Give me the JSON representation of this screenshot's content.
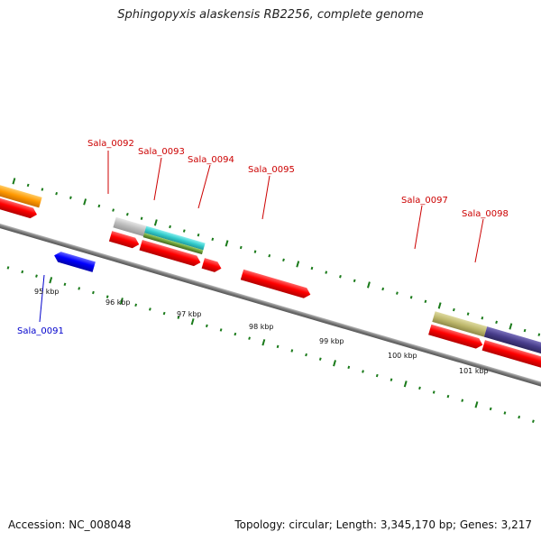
{
  "title": "Sphingopyxis alaskensis RB2256, complete genome",
  "footer": {
    "accession": "Accession: NC_008048",
    "summary": "Topology: circular; Length: 3,345,170 bp; Genes: 3,217"
  },
  "kbp_labels": [
    "95 kbp",
    "96 kbp",
    "97 kbp",
    "98 kbp",
    "99 kbp",
    "100 kbp",
    "101 kbp"
  ],
  "gene_labels": [
    {
      "text": "Sala_0091",
      "color": "#0000cc"
    },
    {
      "text": "Sala_0092",
      "color": "#cc0000"
    },
    {
      "text": "Sala_0093",
      "color": "#cc0000"
    },
    {
      "text": "Sala_0094",
      "color": "#cc0000"
    },
    {
      "text": "Sala_0095",
      "color": "#cc0000"
    },
    {
      "text": "Sala_0097",
      "color": "#cc0000"
    },
    {
      "text": "Sala_0098",
      "color": "#cc0000"
    }
  ],
  "colors": {
    "cds_forward": "#ff0000",
    "cds_reverse": "#0000ff",
    "backbone": "#8a8a8a",
    "tick": "#1a7a1a",
    "orange_feature": "#ff9900",
    "teal_feature": "#33cccc",
    "olive_feature": "#669933",
    "grey_feature": "#bbbbbb",
    "khaki_feature": "#bdb76b",
    "slate_feature": "#483d8b"
  }
}
